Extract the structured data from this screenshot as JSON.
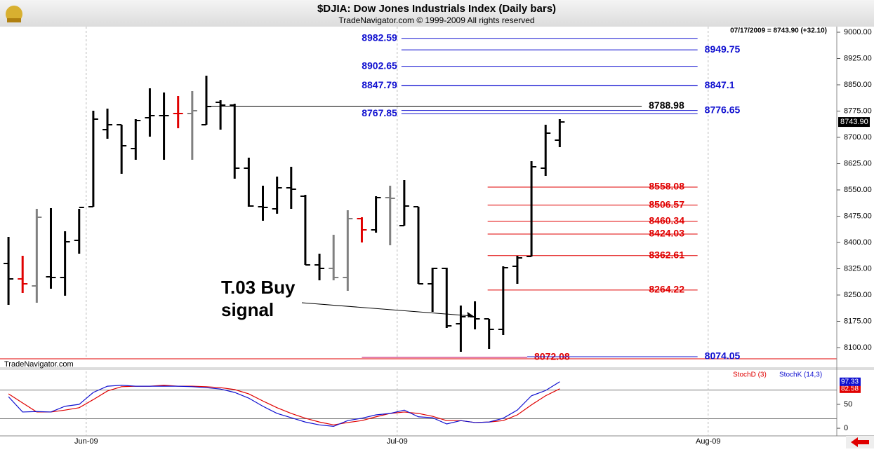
{
  "chart_data": [
    {
      "type": "ohlc",
      "title": "$DJIA:  Dow Jones Industrials Index  (Daily bars)",
      "subtitle": "TradeNavigator.com © 1999-2009 All rights reserved",
      "header_note": "07/17/2009 = 8743.90 (+32.10)",
      "watermark": "TradeNavigator.com",
      "annotation": [
        "T.03 Buy",
        "signal"
      ],
      "annotation_target": 33,
      "x": [
        0,
        1,
        2,
        3,
        4,
        5,
        6,
        7,
        8,
        9,
        10,
        11,
        12,
        13,
        14,
        15,
        16,
        17,
        18,
        19,
        20,
        21,
        22,
        23,
        24,
        25,
        26,
        27,
        28,
        29,
        30,
        31,
        32,
        33,
        34,
        35,
        36,
        37,
        38,
        39
      ],
      "open": [
        8340,
        8296,
        8276,
        8302,
        8300,
        8406,
        8502,
        8722,
        8736,
        8668,
        8756,
        8762,
        8768,
        8768,
        8736,
        8800,
        8792,
        8612,
        8502,
        8496,
        8556,
        8532,
        8336,
        8326,
        8300,
        8468,
        8436,
        8528,
        8448,
        8502,
        8282,
        8326,
        8168,
        8188,
        8182,
        8152,
        8332,
        8360,
        8612,
        8692
      ],
      "high": [
        8416,
        8362,
        8496,
        8498,
        8432,
        8496,
        8776,
        8782,
        8736,
        8752,
        8840,
        8828,
        8818,
        8832,
        8876,
        8806,
        8796,
        8642,
        8562,
        8588,
        8616,
        8536,
        8368,
        8422,
        8492,
        8472,
        8532,
        8562,
        8578,
        8502,
        8328,
        8328,
        8220,
        8232,
        8182,
        8332,
        8362,
        8632,
        8736,
        8752
      ],
      "low": [
        8222,
        8256,
        8228,
        8268,
        8248,
        8368,
        8502,
        8696,
        8596,
        8636,
        8702,
        8636,
        8726,
        8636,
        8736,
        8722,
        8582,
        8502,
        8462,
        8482,
        8496,
        8336,
        8292,
        8292,
        8262,
        8400,
        8428,
        8392,
        8448,
        8282,
        8202,
        8156,
        8088,
        8152,
        8096,
        8136,
        8282,
        8360,
        8590,
        8672
      ],
      "close": [
        8296,
        8282,
        8472,
        8300,
        8402,
        8500,
        8752,
        8736,
        8676,
        8748,
        8762,
        8762,
        8768,
        8776,
        8788,
        8792,
        8612,
        8504,
        8500,
        8556,
        8552,
        8336,
        8326,
        8300,
        8468,
        8436,
        8528,
        8526,
        8504,
        8282,
        8326,
        8162,
        8188,
        8182,
        8152,
        8328,
        8356,
        8616,
        8712,
        8743.9
      ],
      "bar_colors": [
        "#000000",
        "#e00000",
        "#808080",
        "#000000",
        "#000000",
        "#000000",
        "#000000",
        "#000000",
        "#000000",
        "#000000",
        "#000000",
        "#000000",
        "#e00000",
        "#808080",
        "#000000",
        "#000000",
        "#000000",
        "#000000",
        "#000000",
        "#000000",
        "#000000",
        "#000000",
        "#000000",
        "#808080",
        "#808080",
        "#e00000",
        "#000000",
        "#808080",
        "#000000",
        "#000000",
        "#000000",
        "#000000",
        "#000000",
        "#000000",
        "#000000",
        "#000000",
        "#000000",
        "#000000",
        "#000000",
        "#000000"
      ],
      "last_price_label": "8743.90",
      "levels": [
        {
          "value": 8982.59,
          "color": "#1010d0",
          "from": 27.8,
          "to": 48.75,
          "label_side": "left"
        },
        {
          "value": 8949.75,
          "color": "#1010d0",
          "from": 27.8,
          "to": 48.75,
          "label_side": "right"
        },
        {
          "value": 8902.65,
          "color": "#1010d0",
          "from": 27.8,
          "to": 48.75,
          "label_side": "left"
        },
        {
          "value": 8847.79,
          "color": "#1010d0",
          "from": 27.8,
          "to": 48.75,
          "label_side": "left"
        },
        {
          "value": 8847.1,
          "color": "#1010d0",
          "from": 27.8,
          "to": 48.75,
          "label_side": "right"
        },
        {
          "value": 8788.98,
          "color": "#000000",
          "from": 14,
          "to": 44.8,
          "label_side": "right"
        },
        {
          "value": 8776.65,
          "color": "#1010d0",
          "from": 27.8,
          "to": 48.75,
          "label_side": "right"
        },
        {
          "value": 8767.85,
          "color": "#1010d0",
          "from": 27.8,
          "to": 48.75,
          "label_side": "left"
        },
        {
          "value": 8558.08,
          "color": "#e00000",
          "from": 33.9,
          "to": 48.75,
          "label_side": "inside"
        },
        {
          "value": 8506.57,
          "color": "#e00000",
          "from": 33.9,
          "to": 48.75,
          "label_side": "inside"
        },
        {
          "value": 8460.34,
          "color": "#e00000",
          "from": 33.9,
          "to": 48.75,
          "label_side": "inside"
        },
        {
          "value": 8424.03,
          "color": "#e00000",
          "from": 33.9,
          "to": 48.75,
          "label_side": "inside"
        },
        {
          "value": 8362.61,
          "color": "#e00000",
          "from": 33.9,
          "to": 48.75,
          "label_side": "inside"
        },
        {
          "value": 8264.22,
          "color": "#e00000",
          "from": 33.9,
          "to": 48.75,
          "label_side": "inside"
        },
        {
          "value": 8072.08,
          "color": "#c00060",
          "from": 25,
          "to": 36.7,
          "label_side": "right",
          "label_color": "#e00000"
        },
        {
          "value": 8074.05,
          "color": "#1010d0",
          "from": 36.7,
          "to": 48.75,
          "label_side": "right"
        }
      ],
      "xlim": [
        -0.6,
        58.6
      ],
      "ylim": [
        8068,
        9016
      ],
      "yticks": [
        {
          "value": 8100,
          "label": "8100.00"
        },
        {
          "value": 8175,
          "label": "8175.00"
        },
        {
          "value": 8250,
          "label": "8250.00"
        },
        {
          "value": 8325,
          "label": "8325.00"
        },
        {
          "value": 8400,
          "label": "8400.00"
        },
        {
          "value": 8475,
          "label": "8475.00"
        },
        {
          "value": 8550,
          "label": "8550.00"
        },
        {
          "value": 8625,
          "label": "8625.00"
        },
        {
          "value": 8700,
          "label": "8700.00"
        },
        {
          "value": 8775,
          "label": "8775.00"
        },
        {
          "value": 8850,
          "label": "8850.00"
        },
        {
          "value": 8925,
          "label": "8925.00"
        },
        {
          "value": 9000,
          "label": "9000.00"
        }
      ]
    },
    {
      "type": "line",
      "x": [
        0,
        1,
        2,
        3,
        4,
        5,
        6,
        7,
        8,
        9,
        10,
        11,
        12,
        13,
        14,
        15,
        16,
        17,
        18,
        19,
        20,
        21,
        22,
        23,
        24,
        25,
        26,
        27,
        28,
        29,
        30,
        31,
        32,
        33,
        34,
        35,
        36,
        37,
        38,
        39
      ],
      "series": [
        {
          "name": "StochD (3)",
          "color": "#e00000",
          "values": [
            72,
            53,
            34,
            34,
            38,
            43,
            60,
            78,
            87,
            88,
            88,
            90,
            88,
            88,
            87,
            85,
            81,
            72,
            57,
            43,
            31,
            21,
            13,
            7,
            12,
            16,
            24,
            31,
            34,
            31,
            25,
            16,
            16,
            12,
            13,
            16,
            28,
            49,
            68,
            82.58
          ]
        },
        {
          "name": "StochK (14,3)",
          "color": "#1010d0",
          "values": [
            66,
            34,
            35,
            34,
            46,
            50,
            75,
            88,
            90,
            88,
            88,
            88,
            88,
            87,
            85,
            82,
            75,
            63,
            46,
            31,
            22,
            13,
            7,
            4,
            16,
            21,
            28,
            31,
            38,
            24,
            22,
            9,
            16,
            12,
            13,
            21,
            38,
            68,
            79,
            97.33
          ]
        }
      ],
      "hlines": [
        20,
        80
      ],
      "xlim": [
        -0.6,
        58.6
      ],
      "ylim": [
        -16,
        119
      ],
      "yticks": [
        0,
        50
      ],
      "xticks": [
        {
          "value": 5.5,
          "label": "Jun-09"
        },
        {
          "value": 27.5,
          "label": "Jul-09"
        },
        {
          "value": 49.5,
          "label": "Aug-09"
        }
      ]
    }
  ]
}
